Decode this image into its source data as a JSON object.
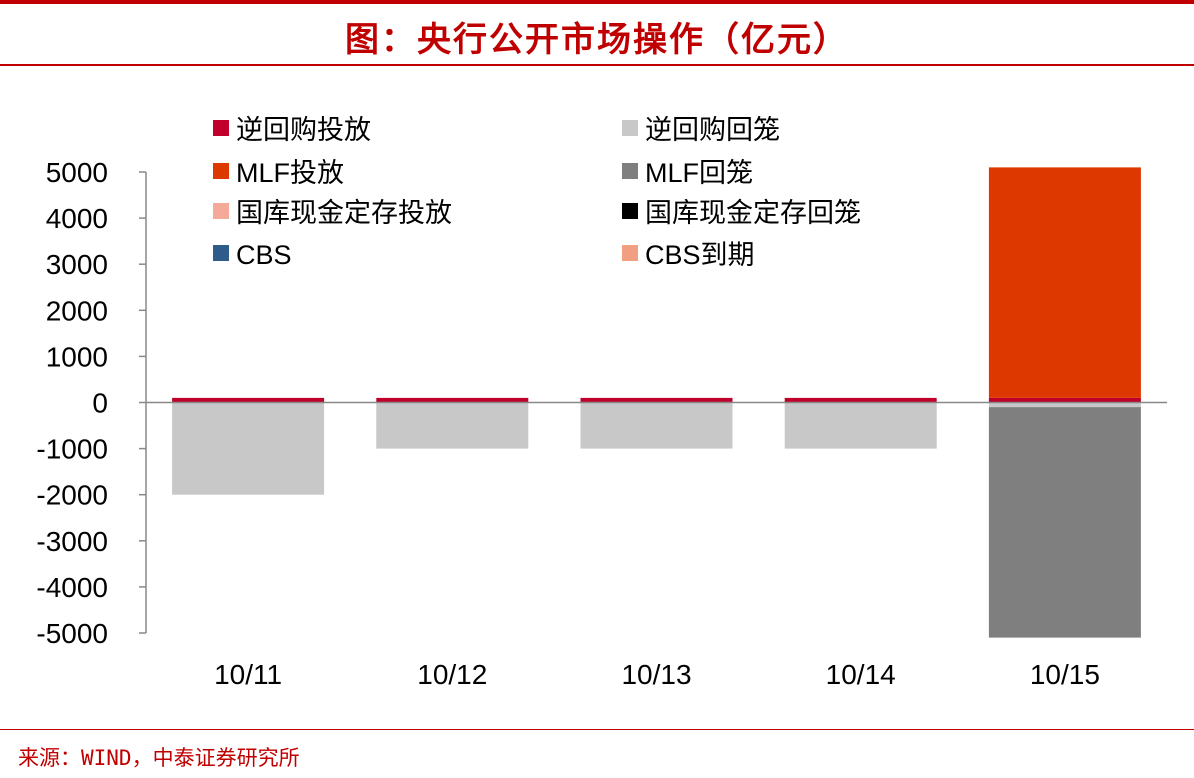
{
  "title": "图：央行公开市场操作（亿元）",
  "source": "来源：WIND，中泰证券研究所",
  "chart_data": {
    "type": "bar",
    "stacked": true,
    "categories": [
      "10/11",
      "10/12",
      "10/13",
      "10/14",
      "10/15"
    ],
    "ylim": [
      -5000,
      5000
    ],
    "yticks": [
      "5000",
      "4000",
      "3000",
      "2000",
      "1000",
      "0",
      "-1000",
      "-2000",
      "-3000",
      "-4000",
      "-5000"
    ],
    "ytick_values": [
      5000,
      4000,
      3000,
      2000,
      1000,
      0,
      -1000,
      -2000,
      -3000,
      -4000,
      -5000
    ],
    "grid": false,
    "legend_position": "top",
    "series": [
      {
        "name": "逆回购投放",
        "color": "#c0002a",
        "values": [
          100,
          100,
          100,
          100,
          100
        ]
      },
      {
        "name": "逆回购回笼",
        "color": "#c8c8c8",
        "values": [
          -2000,
          -1000,
          -1000,
          -1000,
          -100
        ]
      },
      {
        "name": "MLF投放",
        "color": "#dc3800",
        "values": [
          0,
          0,
          0,
          0,
          5000
        ]
      },
      {
        "name": "MLF回笼",
        "color": "#7f7f7f",
        "values": [
          0,
          0,
          0,
          0,
          -5000
        ]
      },
      {
        "name": "国库现金定存投放",
        "color": "#f4a99a",
        "values": [
          0,
          0,
          0,
          0,
          0
        ]
      },
      {
        "name": "国库现金定存回笼",
        "color": "#000000",
        "values": [
          0,
          0,
          0,
          0,
          0
        ]
      },
      {
        "name": "CBS",
        "color": "#2e5a8c",
        "values": [
          0,
          0,
          0,
          0,
          0
        ]
      },
      {
        "name": "CBS到期",
        "color": "#f0a080",
        "values": [
          0,
          0,
          0,
          0,
          0
        ]
      }
    ]
  }
}
